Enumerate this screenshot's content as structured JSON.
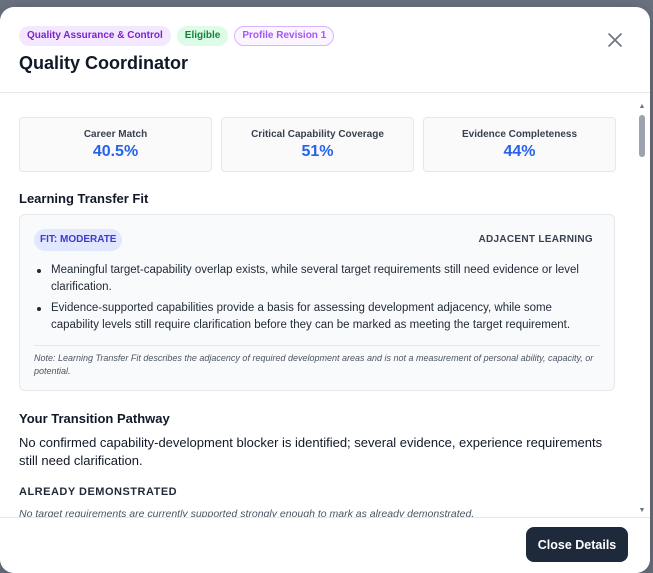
{
  "header": {
    "badges": [
      "Quality Assurance & Control",
      "Eligible",
      "Profile Revision 1"
    ],
    "title": "Quality Coordinator",
    "close_icon": "close-icon"
  },
  "metrics": [
    {
      "label": "Career Match",
      "value": "40.5%"
    },
    {
      "label": "Critical Capability Coverage",
      "value": "51%"
    },
    {
      "label": "Evidence Completeness",
      "value": "44%"
    }
  ],
  "learning_transfer": {
    "section_title": "Learning Transfer Fit",
    "fit_label": "FIT: MODERATE",
    "fit_type": "ADJACENT LEARNING",
    "bullets": [
      "Meaningful target-capability overlap exists, while several target requirements still need evidence or level clarification.",
      "Evidence-supported capabilities provide a basis for assessing development adjacency, while some capability levels still require clarification before they can be marked as meeting the target requirement."
    ],
    "note": "Note: Learning Transfer Fit describes the adjacency of required development areas and is not a measurement of personal ability, capacity, or potential."
  },
  "transition": {
    "section_title": "Your Transition Pathway",
    "summary": "No confirmed capability-development blocker is identified; several evidence, experience requirements still need clarification.",
    "already_title": "ALREADY DEMONSTRATED",
    "already_note": "No target requirements are currently supported strongly enough to mark as already demonstrated."
  },
  "footer": {
    "close_label": "Close Details"
  },
  "colors": {
    "accent": "#2563eb",
    "button": "#1e293b",
    "fit_pill": "#e0e7ff"
  }
}
